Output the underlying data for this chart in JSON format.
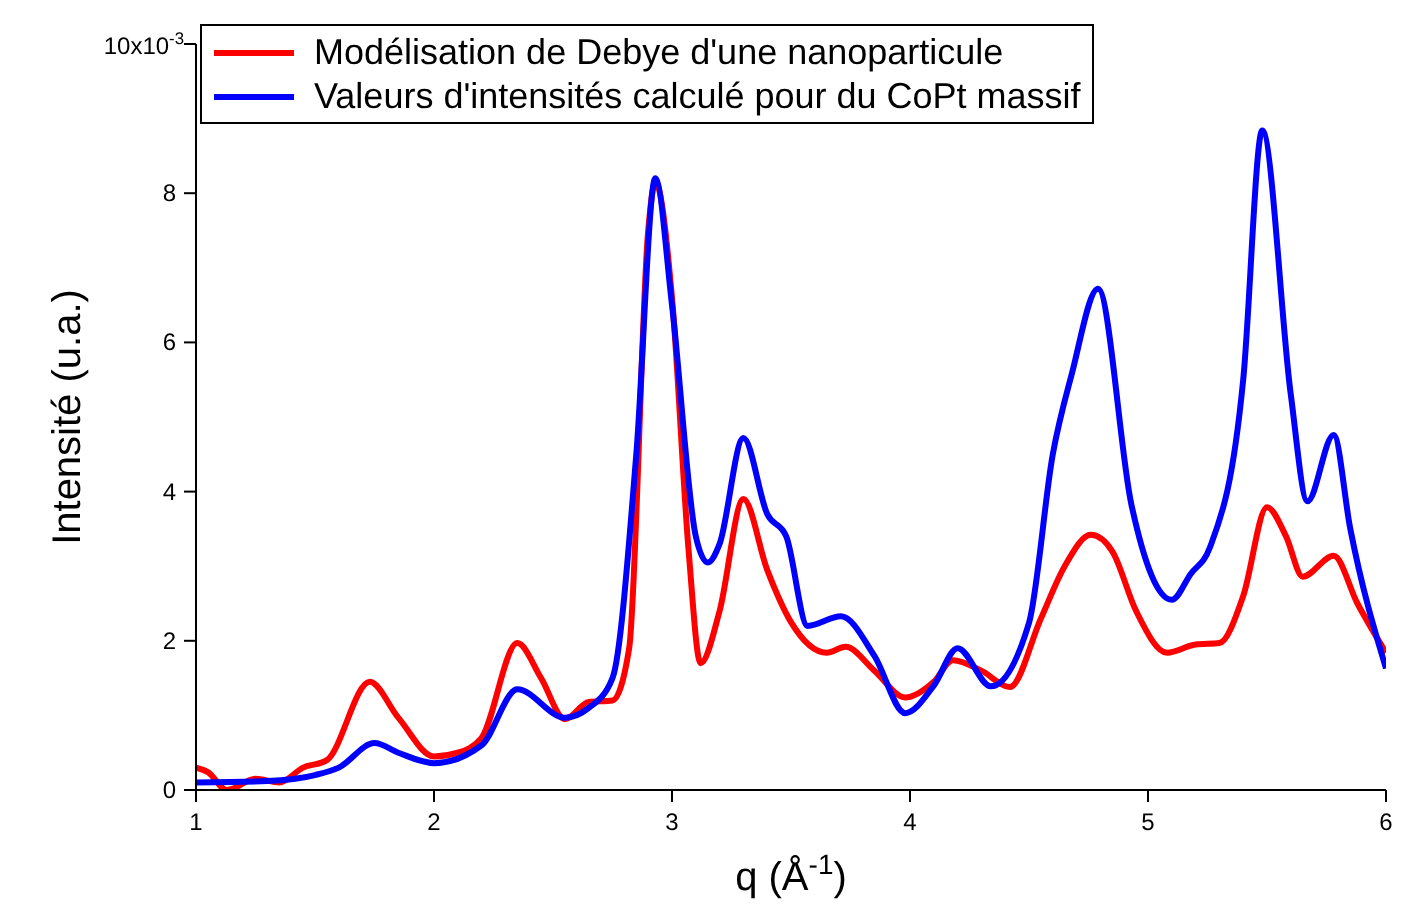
{
  "chart_data": {
    "type": "line",
    "xlabel": "q (Å$^{-1}$)",
    "ylabel": "Intensité (u.a.)",
    "annotations": [
      "10x10$^{-3}$"
    ],
    "xlim": [
      1,
      6
    ],
    "xticks": [
      1,
      2,
      3,
      4,
      5,
      6
    ],
    "ylim": [
      0,
      10
    ],
    "yticks": [
      0,
      2,
      4,
      6,
      8,
      {
        "value": 10,
        "label": null
      }
    ],
    "grid": false,
    "legend": "top left",
    "marker": "none",
    "line_style": "solid",
    "series": [
      {
        "name": "Modélisation de Debye d'une nanoparticule",
        "color": "#ff0000",
        "x": [
          1.0,
          1.05,
          1.13,
          1.25,
          1.35,
          1.45,
          1.55,
          1.73,
          1.85,
          2.0,
          2.1,
          2.2,
          2.35,
          2.45,
          2.55,
          2.65,
          2.75,
          2.82,
          2.9,
          2.93,
          3.0,
          3.07,
          3.12,
          3.2,
          3.3,
          3.4,
          3.5,
          3.65,
          3.73,
          3.85,
          3.98,
          4.1,
          4.18,
          4.3,
          4.42,
          4.55,
          4.65,
          4.76,
          4.85,
          4.95,
          5.08,
          5.2,
          5.3,
          5.4,
          5.5,
          5.58,
          5.65,
          5.78,
          5.88,
          6.0
        ],
        "values": [
          0.3,
          0.24,
          0.0,
          0.15,
          0.1,
          0.3,
          0.4,
          1.45,
          0.97,
          0.45,
          0.5,
          0.7,
          1.97,
          1.5,
          0.95,
          1.18,
          1.2,
          1.9,
          7.5,
          8.15,
          6.6,
          3.2,
          1.7,
          2.4,
          3.9,
          2.95,
          2.25,
          1.84,
          1.92,
          1.6,
          1.24,
          1.45,
          1.74,
          1.6,
          1.38,
          2.3,
          3.0,
          3.42,
          3.2,
          2.4,
          1.84,
          1.95,
          1.97,
          2.6,
          3.79,
          3.4,
          2.86,
          3.14,
          2.5,
          1.84
        ]
      },
      {
        "name": "Valeurs d'intensités calculé pour du CoPt massif",
        "color": "#0000ff",
        "x": [
          1.0,
          1.3,
          1.5,
          1.6,
          1.75,
          1.85,
          2.0,
          2.2,
          2.35,
          2.55,
          2.65,
          2.75,
          2.85,
          2.93,
          3.0,
          3.1,
          3.15,
          3.2,
          3.3,
          3.4,
          3.48,
          3.57,
          3.71,
          3.85,
          3.98,
          4.1,
          4.2,
          4.34,
          4.5,
          4.6,
          4.68,
          4.79,
          4.93,
          5.1,
          5.18,
          5.26,
          5.4,
          5.48,
          5.6,
          5.67,
          5.78,
          5.85,
          6.0
        ],
        "values": [
          0.1,
          0.12,
          0.2,
          0.3,
          0.63,
          0.5,
          0.36,
          0.6,
          1.35,
          0.97,
          1.1,
          1.5,
          4.5,
          8.2,
          6.5,
          3.4,
          3.05,
          3.3,
          4.72,
          3.7,
          3.4,
          2.2,
          2.33,
          1.8,
          1.03,
          1.4,
          1.9,
          1.39,
          2.24,
          4.5,
          5.58,
          6.72,
          3.83,
          2.55,
          2.9,
          3.25,
          5.5,
          8.84,
          5.3,
          3.87,
          4.76,
          3.5,
          1.63
        ]
      }
    ]
  }
}
